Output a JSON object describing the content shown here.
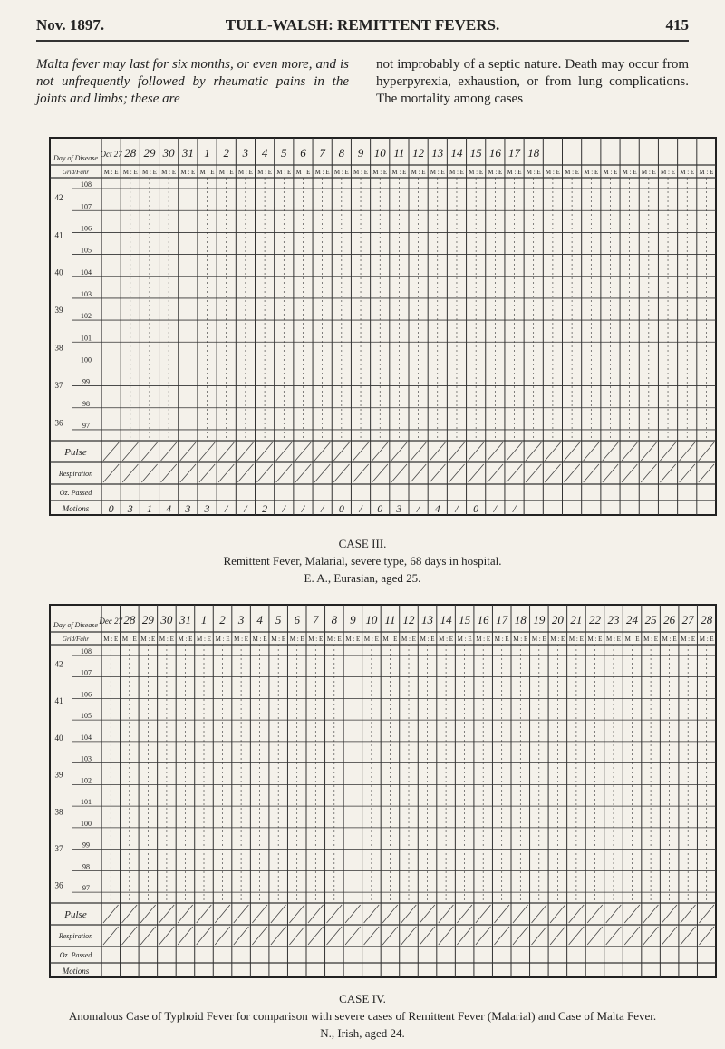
{
  "header": {
    "left": "Nov. 1897.",
    "center": "TULL-WALSH: REMITTENT FEVERS.",
    "right": "415"
  },
  "body": {
    "left": "Malta fever may last for six months, or even more, and is not unfrequently followed by rheumatic pains in the joints and limbs; these are",
    "right": "not improbably of a septic nature. Death may occur from hyperpyrexia, exhaustion, or from lung complications. The mortality among cases"
  },
  "charts": [
    {
      "days": [
        "Oct 27",
        "28",
        "29",
        "30",
        "31",
        "1",
        "2",
        "3",
        "4",
        "5",
        "6",
        "7",
        "8",
        "9",
        "10",
        "11",
        "12",
        "13",
        "14",
        "15",
        "16",
        "17",
        "18"
      ],
      "row_labels": {
        "day": "Day of Disease",
        "me": "Grid/Fahr",
        "pulse": "Pulse",
        "resp": "Respiration",
        "oz": "Oz. Passed",
        "motions": "Motions"
      },
      "me_label": "M : E",
      "celsius": [
        "42",
        "41",
        "40",
        "39",
        "38",
        "37",
        "36"
      ],
      "fahrenheit": [
        "108",
        "107",
        "106",
        "105",
        "104",
        "103",
        "102",
        "101",
        "100",
        "99",
        "98",
        "97"
      ],
      "motions": [
        "0",
        "3",
        "1",
        "4",
        "3",
        "3",
        "/",
        "/",
        "2",
        "/",
        "/",
        "/",
        "0",
        "/",
        "0",
        "3",
        "/",
        "4",
        "/",
        "0",
        "/",
        "/"
      ],
      "caption": {
        "title": "CASE III.",
        "line1": "Remittent Fever, Malarial, severe type, 68 days in hospital.",
        "line2": "E. A., Eurasian, aged 25."
      }
    },
    {
      "days": [
        "Dec 27",
        "28",
        "29",
        "30",
        "31",
        "1",
        "2",
        "3",
        "4",
        "5",
        "6",
        "7",
        "8",
        "9",
        "10",
        "11",
        "12",
        "13",
        "14",
        "15",
        "16",
        "17",
        "18",
        "19",
        "20",
        "21",
        "22",
        "23",
        "24",
        "25",
        "26",
        "27",
        "28"
      ],
      "row_labels": {
        "day": "Day of Disease",
        "me": "Grid/Fahr",
        "pulse": "Pulse",
        "resp": "Respiration",
        "oz": "Oz. Passed",
        "motions": "Motions"
      },
      "me_label": "M : E",
      "celsius": [
        "42",
        "41",
        "40",
        "39",
        "38",
        "37",
        "36"
      ],
      "fahrenheit": [
        "108",
        "107",
        "106",
        "105",
        "104",
        "103",
        "102",
        "101",
        "100",
        "99",
        "98",
        "97"
      ],
      "motions": [],
      "caption": {
        "title": "CASE IV.",
        "line1": "Anomalous Case of Typhoid Fever for comparison with severe cases of Remittent Fever (Malarial) and Case of Malta Fever.",
        "line2": "N., Irish, aged 24."
      }
    }
  ]
}
